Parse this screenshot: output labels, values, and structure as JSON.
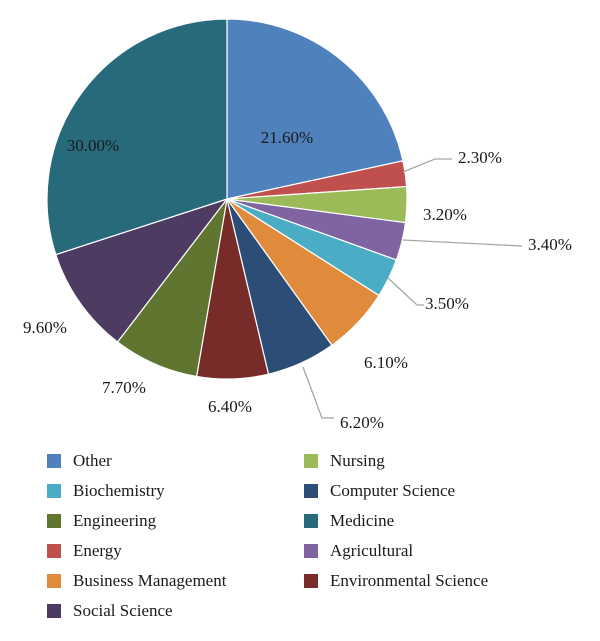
{
  "chart_data": {
    "type": "pie",
    "title": "",
    "slices": [
      {
        "name": "Other",
        "value": 21.6,
        "label": "21.60%",
        "color": "#4f81bd"
      },
      {
        "name": "Energy",
        "value": 2.3,
        "label": "2.30%",
        "color": "#c0504d"
      },
      {
        "name": "Nursing",
        "value": 3.2,
        "label": "3.20%",
        "color": "#9bbb59"
      },
      {
        "name": "Agricultural",
        "value": 3.4,
        "label": "3.40%",
        "color": "#8064a2"
      },
      {
        "name": "Biochemistry",
        "value": 3.5,
        "label": "3.50%",
        "color": "#4bacc6"
      },
      {
        "name": "Business Management",
        "value": 6.1,
        "label": "6.10%",
        "color": "#e08a3c"
      },
      {
        "name": "Computer Science",
        "value": 6.2,
        "label": "6.20%",
        "color": "#2c4d75"
      },
      {
        "name": "Environmental Science",
        "value": 6.4,
        "label": "6.40%",
        "color": "#772c2a"
      },
      {
        "name": "Engineering",
        "value": 7.7,
        "label": "7.70%",
        "color": "#5f7530"
      },
      {
        "name": "Social Science",
        "value": 9.6,
        "label": "9.60%",
        "color": "#4d3b62"
      },
      {
        "name": "Medicine",
        "value": 30.0,
        "label": "30.00%",
        "color": "#276a7c",
        "label_color": "#c0504d"
      }
    ],
    "legend": {
      "placement": "bottom",
      "columns": [
        [
          "Other",
          "Biochemistry",
          "Engineering",
          "Energy",
          "Business Management",
          "Social Science"
        ],
        [
          "Nursing",
          "Computer Science",
          "Medicine",
          "Agricultural",
          "Environmental Science"
        ]
      ]
    }
  }
}
